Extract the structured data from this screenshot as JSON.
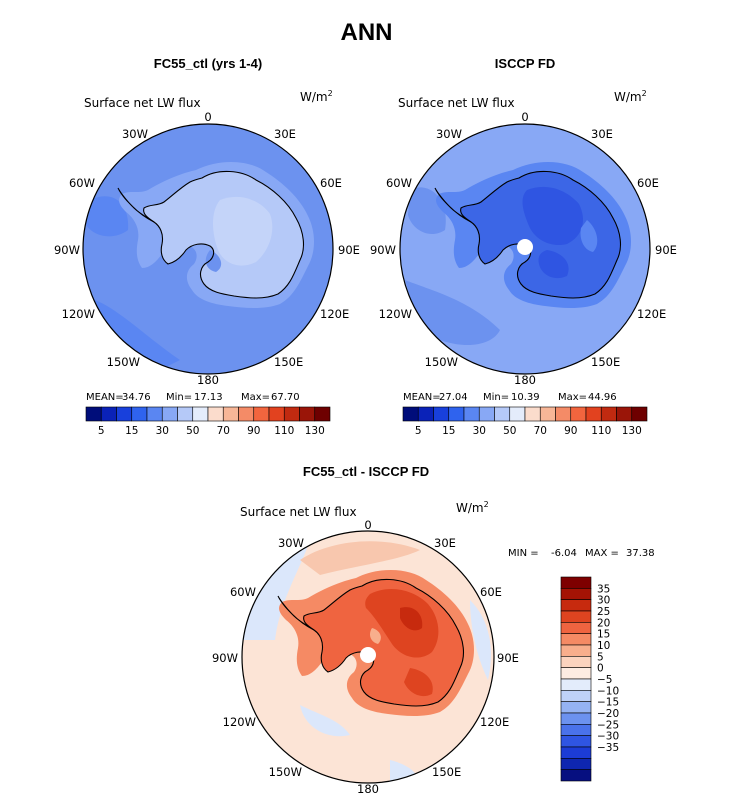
{
  "title": "ANN",
  "panels": [
    {
      "id": "model",
      "title": "FC55_ctl (yrs 1-4)",
      "variable": "Surface net LW flux",
      "units_base": "W/m",
      "units_sup": "2",
      "stats": {
        "mean_label": "MEAN=",
        "mean": "34.76",
        "min_label": "Min=",
        "min": "17.13",
        "max_label": "Max=",
        "max": "67.70"
      }
    },
    {
      "id": "obs",
      "title": "ISCCP FD",
      "variable": "Surface net LW flux",
      "units_base": "W/m",
      "units_sup": "2",
      "stats": {
        "mean_label": "MEAN=",
        "mean": "27.04",
        "min_label": "Min=",
        "min": "10.39",
        "max_label": "Max=",
        "max": "44.96"
      }
    },
    {
      "id": "diff",
      "title": "FC55_ctl - ISCCP FD",
      "variable": "Surface net LW flux",
      "units_base": "W/m",
      "units_sup": "2",
      "stats": {
        "min_label": "MIN =",
        "min": "-6.04",
        "max_label": "MAX =",
        "max": "37.38"
      }
    }
  ],
  "map_labels": [
    "0",
    "30E",
    "60E",
    "90E",
    "120E",
    "150E",
    "180",
    "150W",
    "120W",
    "90W",
    "60W",
    "30W"
  ],
  "colorbar_abs": {
    "tick_labels": [
      "5",
      "15",
      "30",
      "50",
      "70",
      "90",
      "110",
      "130"
    ],
    "colors": [
      "#000d7a",
      "#0a22b8",
      "#1840dc",
      "#2f63ee",
      "#5a86f2",
      "#88a8f5",
      "#b5c9f8",
      "#e4ecfb",
      "#fbdccc",
      "#f7b697",
      "#f48b67",
      "#f2653e",
      "#e2421f",
      "#c12a10",
      "#9a1508",
      "#6e0000"
    ]
  },
  "colorbar_diff": {
    "tick_labels": [
      "35",
      "30",
      "25",
      "20",
      "15",
      "10",
      "5",
      "0",
      "−5",
      "−10",
      "−15",
      "−20",
      "−25",
      "−30",
      "−35"
    ],
    "colors": [
      "#7e0000",
      "#a41305",
      "#c72a0e",
      "#de4420",
      "#ef6440",
      "#f58a64",
      "#f8ae8c",
      "#fbd3be",
      "#fdece2",
      "#e3ecfb",
      "#bfd2f8",
      "#95b3f3",
      "#6c92ef",
      "#4a72ea",
      "#2f55e2",
      "#1c3cd6",
      "#0e26b0",
      "#060f80"
    ]
  },
  "colors": {
    "abs_ocean": "#6c92ef",
    "abs_ocean_dark": "#4f7aea",
    "abs_land_model": "#b5c9f8",
    "abs_land_obs": "#3c66e6",
    "diff_ocean": "#fce4d6",
    "diff_ocean_blue": "#dbe7fb",
    "diff_land": "#ef6440",
    "diff_land_dark": "#c72a0e"
  }
}
